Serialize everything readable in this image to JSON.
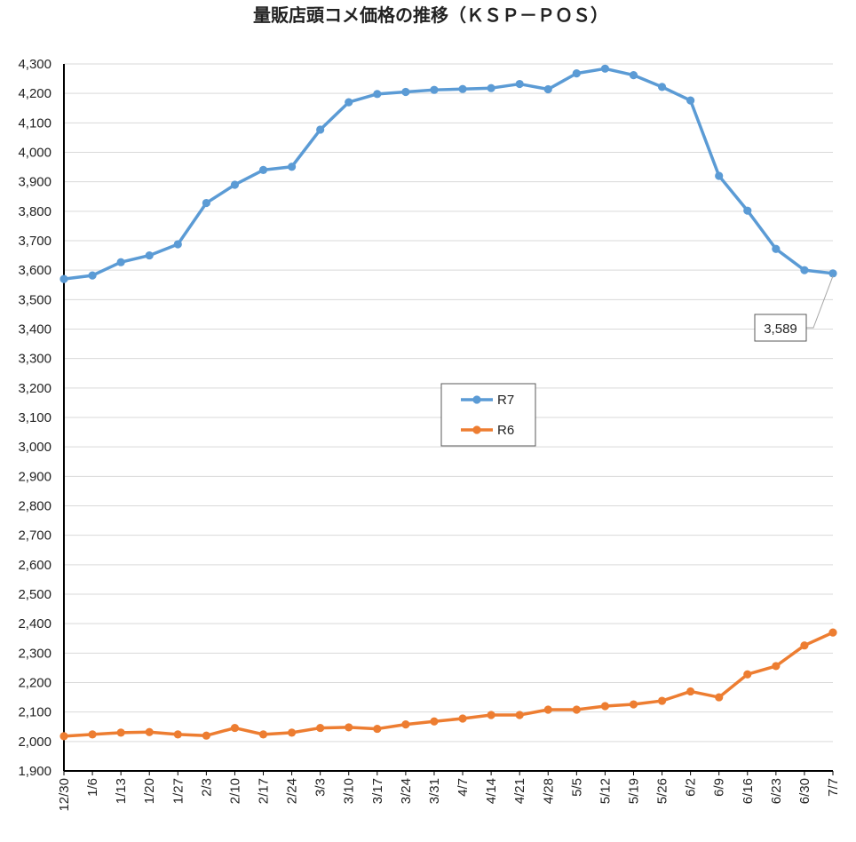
{
  "chart_data": {
    "type": "line",
    "title": "量販店頭コメ価格の推移（ＫＳＰ－ＰＯＳ）",
    "xlabel": "",
    "ylabel": "",
    "ylim": [
      1900,
      4300
    ],
    "ytick_step": 100,
    "grid": true,
    "legend_position": "center",
    "categories": [
      "12/30",
      "1/6",
      "1/13",
      "1/20",
      "1/27",
      "2/3",
      "2/10",
      "2/17",
      "2/24",
      "3/3",
      "3/10",
      "3/17",
      "3/24",
      "3/31",
      "4/7",
      "4/14",
      "4/21",
      "4/28",
      "5/5",
      "5/12",
      "5/19",
      "5/26",
      "6/2",
      "6/9",
      "6/16",
      "6/23",
      "6/30",
      "7/7"
    ],
    "series": [
      {
        "name": "R7",
        "color": "#5B9BD5",
        "values": [
          3570,
          3582,
          3627,
          3650,
          3688,
          3828,
          3890,
          3940,
          3951,
          4077,
          4170,
          4198,
          4205,
          4212,
          4215,
          4218,
          4232,
          4214,
          4268,
          4284,
          4262,
          4222,
          4176,
          3920,
          3802,
          3672,
          3600,
          3589
        ]
      },
      {
        "name": "R6",
        "color": "#ED7D31",
        "values": [
          2018,
          2024,
          2030,
          2032,
          2024,
          2020,
          2046,
          2024,
          2030,
          2046,
          2048,
          2043,
          2058,
          2068,
          2078,
          2090,
          2090,
          2108,
          2108,
          2120,
          2126,
          2138,
          2170,
          2150,
          2228,
          2256,
          2326,
          2370
        ]
      }
    ],
    "annotations": [
      {
        "series": "R7",
        "category": "7/7",
        "label": "3,589"
      }
    ]
  }
}
